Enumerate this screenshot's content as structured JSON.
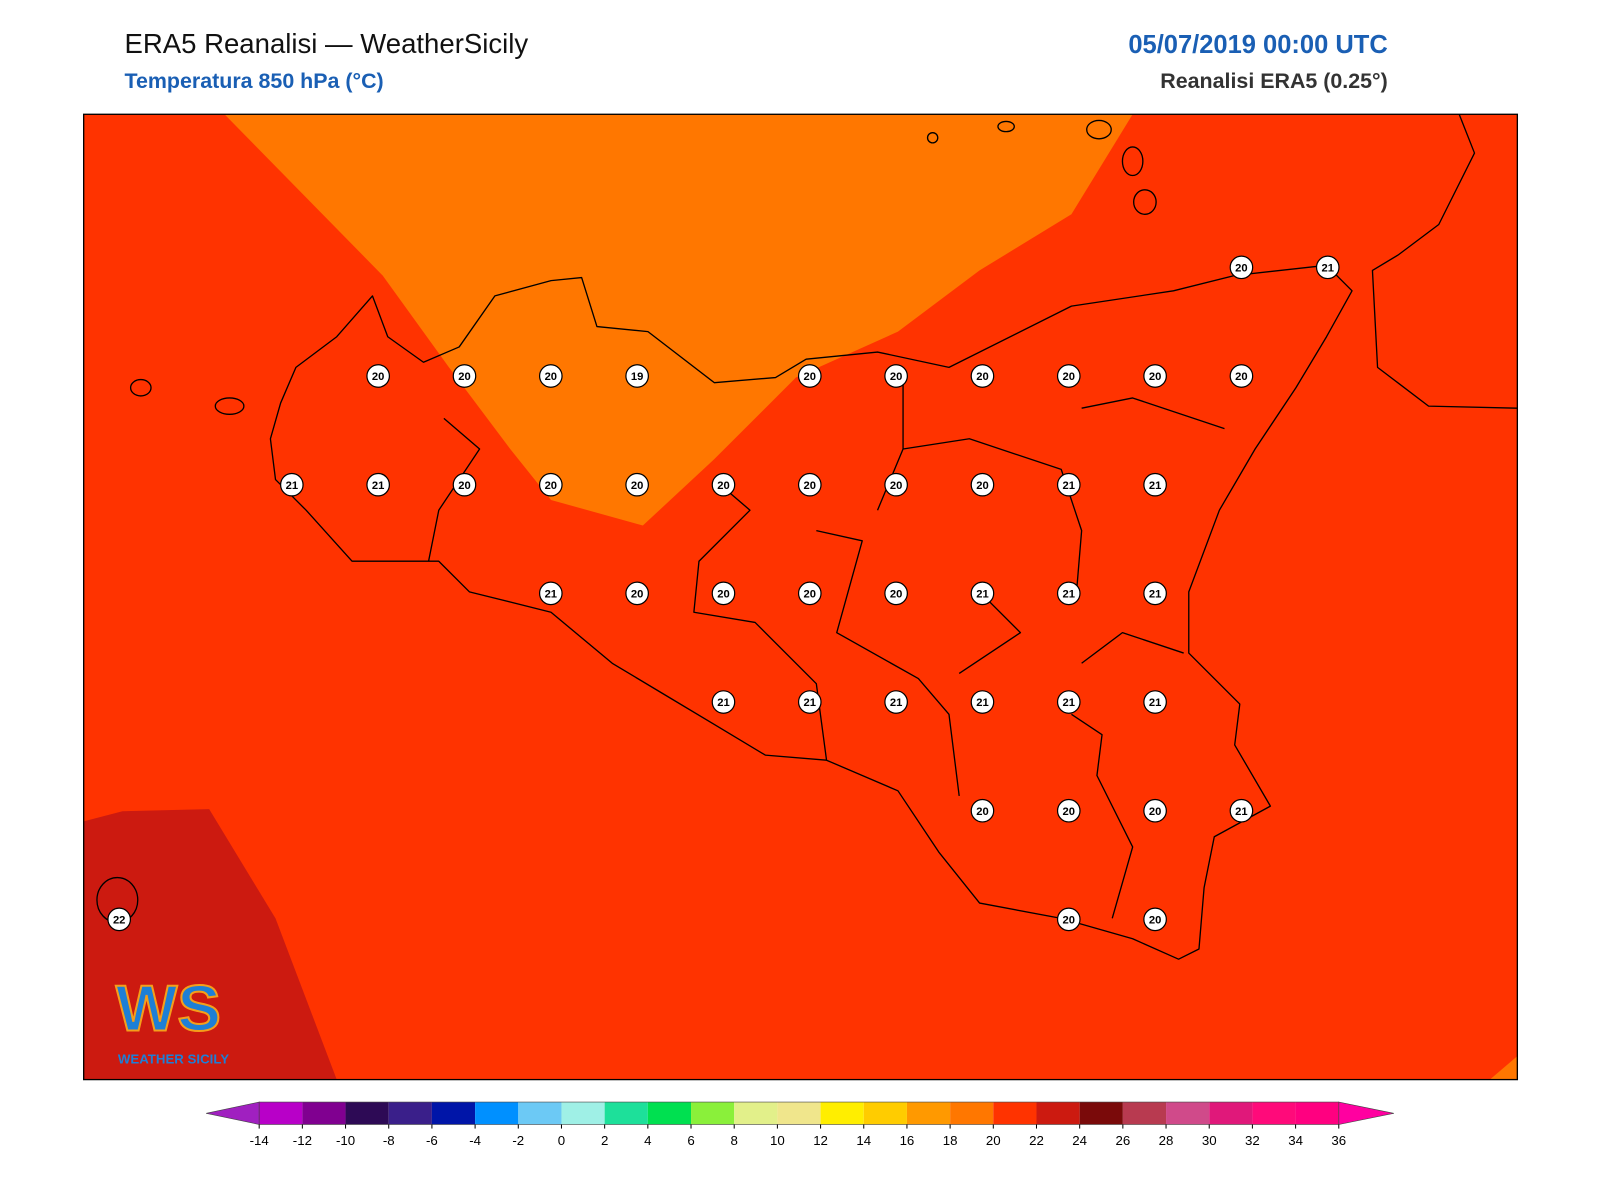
{
  "header": {
    "title": "ERA5 Reanalisi — WeatherSicily",
    "subtitle": "Temperatura 850 hPa (°C)",
    "datetime": "05/07/2019 00:00 UTC",
    "source": "Reanalisi ERA5 (0.25°)"
  },
  "map": {
    "station_rows": [
      [
        20,
        21
      ],
      [
        20,
        20,
        20,
        19,
        20,
        20,
        20,
        20,
        20,
        20
      ],
      [
        21,
        21,
        20,
        20,
        20,
        20,
        20,
        20,
        20,
        21,
        21
      ],
      [
        21,
        20,
        20,
        20,
        20,
        21,
        21,
        21
      ],
      [
        21,
        21,
        21,
        21,
        21,
        21
      ],
      [
        20,
        20,
        20,
        21
      ],
      [
        22,
        20,
        20
      ]
    ]
  },
  "logo": {
    "mark": "WS",
    "text": "WEATHER SICILY"
  },
  "colorbar": {
    "ticks": [
      -14,
      -12,
      -10,
      -8,
      -6,
      -4,
      -2,
      0,
      2,
      4,
      6,
      8,
      10,
      12,
      14,
      16,
      18,
      20,
      22,
      24,
      26,
      28,
      30,
      32,
      34,
      36
    ],
    "colors": [
      "#b800c8",
      "#800090",
      "#2d0a55",
      "#3a1f8a",
      "#0015a8",
      "#0090ff",
      "#6cc9f5",
      "#9ff0e6",
      "#1de09a",
      "#00e050",
      "#8af03a",
      "#e2f08a",
      "#f0e68c",
      "#ffee00",
      "#ffcc00",
      "#ff9900",
      "#ff7700",
      "#ff3300",
      "#cc1a10",
      "#7a0a0a",
      "#b83a50",
      "#d04a8a",
      "#e0187a",
      "#ff0a7a",
      "#ff0080"
    ],
    "under_color": "#a020c0",
    "over_color": "#ff00a0"
  }
}
